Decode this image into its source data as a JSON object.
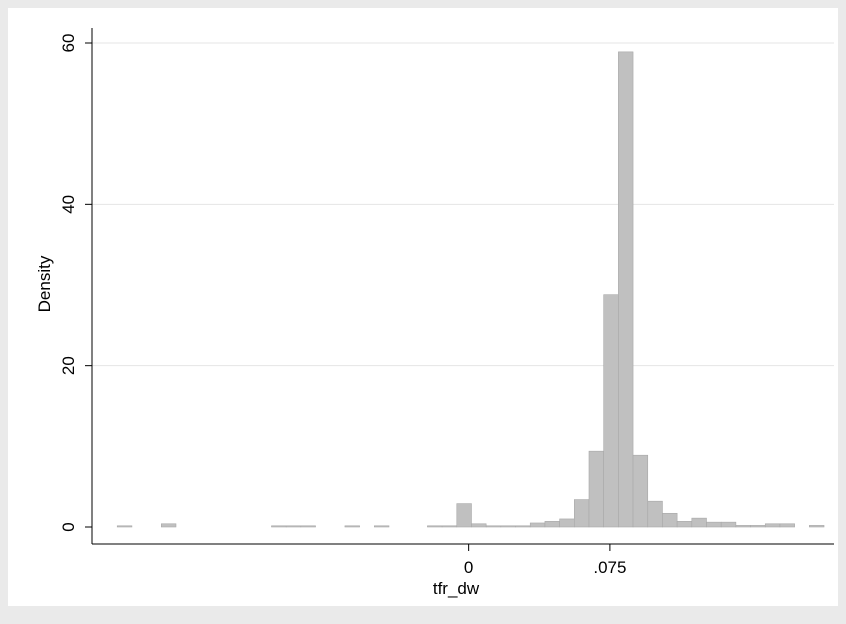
{
  "chart_data": {
    "type": "bar",
    "xlabel": "tfr_dw",
    "ylabel": "Density",
    "ylim": [
      0,
      62
    ],
    "xlim": [
      -0.2,
      0.194
    ],
    "grid": true,
    "x_ticks": [
      {
        "value": 0,
        "label": "0"
      },
      {
        "value": 0.075,
        "label": ".075"
      }
    ],
    "y_ticks": [
      {
        "value": 0,
        "label": "0"
      },
      {
        "value": 20,
        "label": "20"
      },
      {
        "value": 40,
        "label": "40"
      },
      {
        "value": 60,
        "label": "60"
      }
    ],
    "bin_width": 0.0078,
    "bins": [
      {
        "start": -0.1866,
        "value": 0.15
      },
      {
        "start": -0.1632,
        "value": 0.4
      },
      {
        "start": -0.1047,
        "value": 0.15
      },
      {
        "start": -0.0969,
        "value": 0.15
      },
      {
        "start": -0.0891,
        "value": 0.15
      },
      {
        "start": -0.0657,
        "value": 0.15
      },
      {
        "start": -0.0501,
        "value": 0.15
      },
      {
        "start": -0.0219,
        "value": 0.15
      },
      {
        "start": -0.0141,
        "value": 0.15
      },
      {
        "start": -0.0063,
        "value": 2.9
      },
      {
        "start": 0.0015,
        "value": 0.4
      },
      {
        "start": 0.0093,
        "value": 0.15
      },
      {
        "start": 0.0171,
        "value": 0.15
      },
      {
        "start": 0.0249,
        "value": 0.15
      },
      {
        "start": 0.0327,
        "value": 0.5
      },
      {
        "start": 0.0405,
        "value": 0.7
      },
      {
        "start": 0.0483,
        "value": 1.0
      },
      {
        "start": 0.0561,
        "value": 3.4
      },
      {
        "start": 0.0639,
        "value": 9.4
      },
      {
        "start": 0.0717,
        "value": 28.8
      },
      {
        "start": 0.0795,
        "value": 58.9
      },
      {
        "start": 0.0873,
        "value": 8.9
      },
      {
        "start": 0.0951,
        "value": 3.2
      },
      {
        "start": 0.1029,
        "value": 1.7
      },
      {
        "start": 0.1107,
        "value": 0.7
      },
      {
        "start": 0.1185,
        "value": 1.1
      },
      {
        "start": 0.1263,
        "value": 0.6
      },
      {
        "start": 0.1341,
        "value": 0.6
      },
      {
        "start": 0.1419,
        "value": 0.2
      },
      {
        "start": 0.1497,
        "value": 0.2
      },
      {
        "start": 0.1575,
        "value": 0.4
      },
      {
        "start": 0.1653,
        "value": 0.4
      },
      {
        "start": 0.1809,
        "value": 0.2
      }
    ],
    "colors": {
      "background": "#eaeaea",
      "plot_region": "#ffffff",
      "bar_fill": "#c0c0c0",
      "bar_edge": "#a8a8a8",
      "grid": "#e4e4e4",
      "axis": "#000000"
    }
  }
}
